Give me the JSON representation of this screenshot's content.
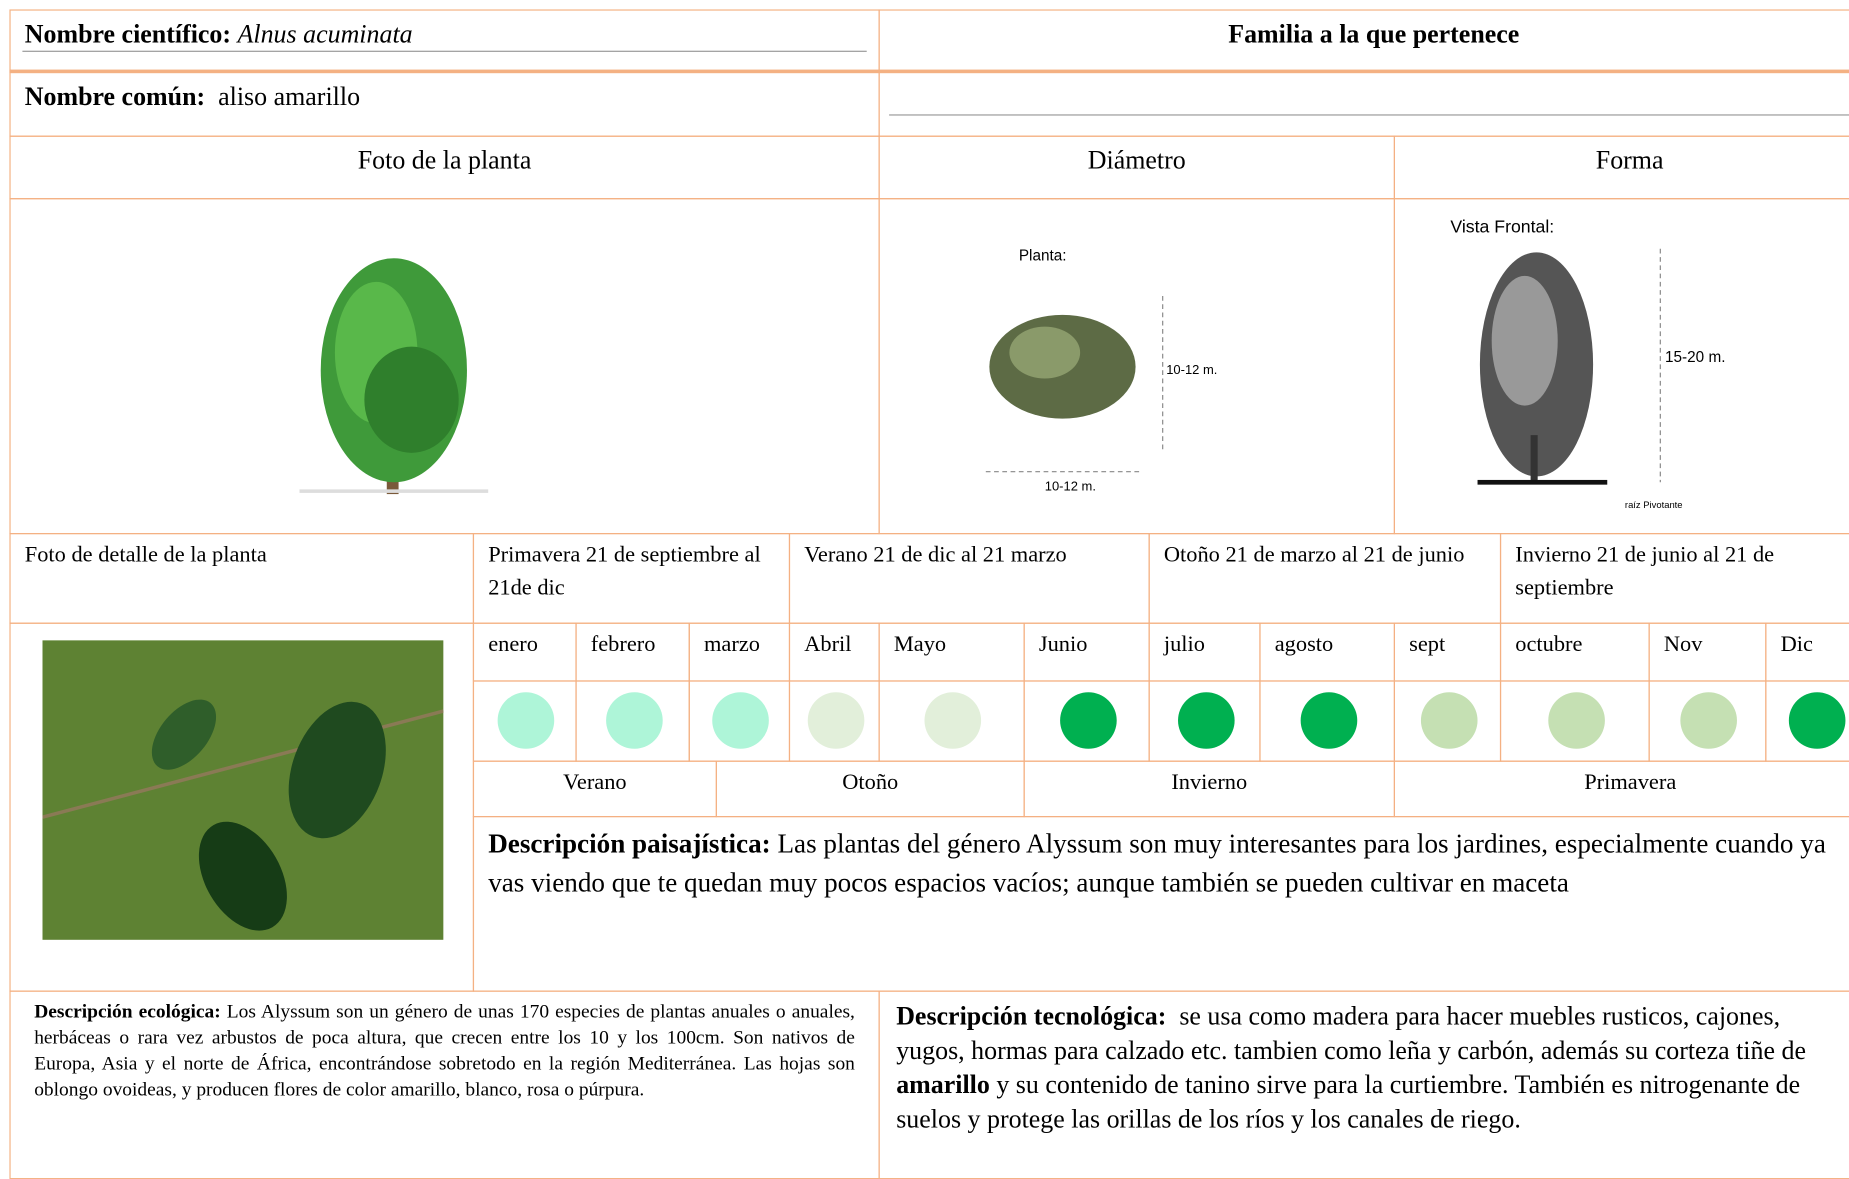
{
  "header": {
    "scientific_label": "Nombre científico:",
    "scientific_name": "Alnus acuminata",
    "family_label": "Familia a la que pertenece",
    "common_label": "Nombre común:",
    "common_name": "aliso amarillo"
  },
  "photo_headers": {
    "plant": "Foto de la planta",
    "diameter": "Diámetro",
    "shape": "Forma"
  },
  "image_labels": {
    "plan": "Planta:",
    "diameter_h": "10-12 m.",
    "diameter_v": "10-12 m.",
    "front": "Vista Frontal:",
    "height": "15-20 m.",
    "root": "raíz Pivotante"
  },
  "detail_label": "Foto de detalle de la planta",
  "seasons_south": [
    "Primavera 21 de septiembre al 21de dic",
    "Verano 21 de dic al 21 marzo",
    "Otoño 21 de marzo al 21 de junio",
    "Invierno 21 de junio al 21 de septiembre"
  ],
  "months": [
    "enero",
    "febrero",
    "marzo",
    "Abril",
    "Mayo",
    "Junio",
    "julio",
    "agosto",
    "sept",
    "octubre",
    "Nov",
    "Dic"
  ],
  "month_colors": [
    "#aef5d8",
    "#aef5d8",
    "#aef5d8",
    "#e2efda",
    "#e2efda",
    "#00b050",
    "#00b050",
    "#00b050",
    "#c5e0b3",
    "#c5e0b3",
    "#c5e0b3",
    "#00b050"
  ],
  "seasons": [
    "Verano",
    "Otoño",
    "Invierno",
    "Primavera"
  ],
  "landscape": {
    "label": "Descripción paisajística:",
    "text": "Las plantas del género Alyssum son muy interesantes para los jardines, especialmente cuando ya vas viendo que te quedan muy pocos espacios vacíos; aunque también se pueden cultivar en maceta"
  },
  "ecological": {
    "label": "Descripción ecológica:",
    "text": "Los Alyssum son un género de unas 170 especies de plantas anuales o anuales, herbáceas o rara vez arbustos de poca altura, que crecen entre los 10 y los 100cm. Son nativos de Europa, Asia y el norte de África, encontrándose sobretodo en la región Mediterránea. Las hojas son oblongo ovoideas, y producen flores de color amarillo, blanco, rosa o púrpura."
  },
  "technological": {
    "label": "Descripción tecnológica:",
    "text_1": "se usa como madera para hacer muebles rusticos, cajones, yugos, hormas para calzado etc. tambien como leña y carbón, además su corteza tiñe de",
    "bold": "amarillo",
    "text_2": "y su contenido de tanino sirve para la curtiembre. También es nitrogenante de suelos y protege las orillas de los ríos y los canales de riego."
  }
}
